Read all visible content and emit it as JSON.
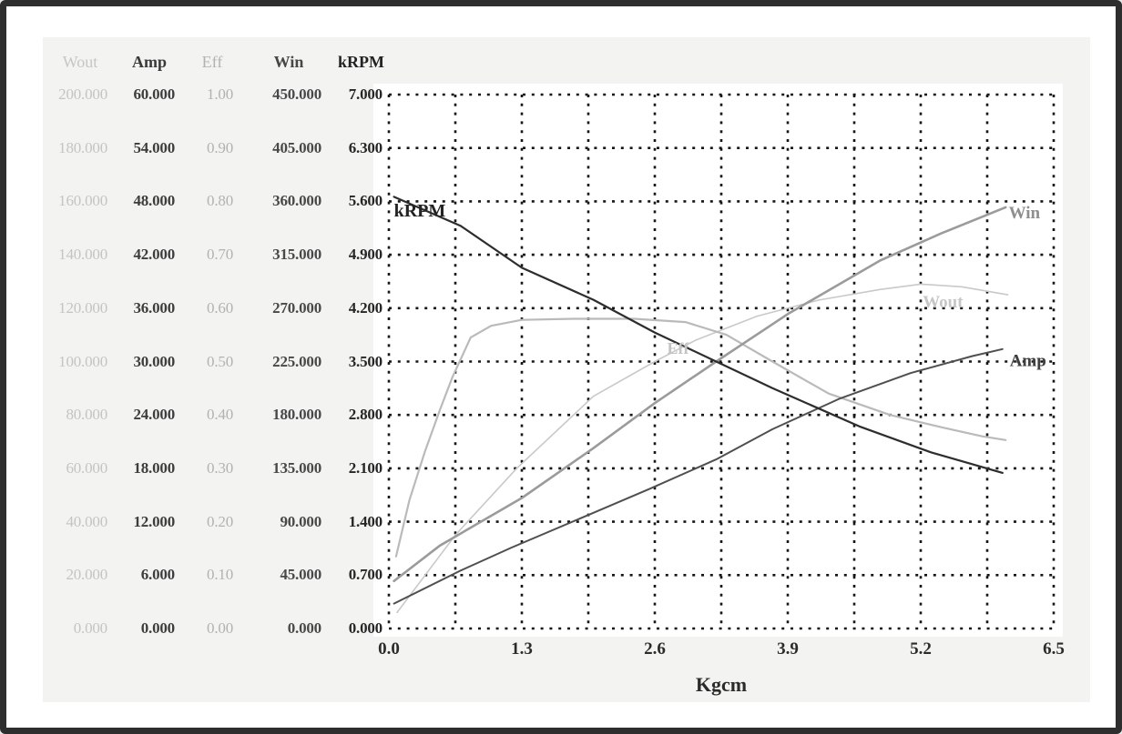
{
  "frame": {
    "border_color": "#2e2e2e",
    "panel_color": "#f3f3f1",
    "plot_background": "#ffffff",
    "grid_color": "#161616"
  },
  "axis_table": {
    "headers": [
      {
        "label": "Wout",
        "color": "#c6c6c6",
        "bold": false
      },
      {
        "label": "Amp",
        "color": "#3a3a3a",
        "bold": true
      },
      {
        "label": "Eff",
        "color": "#b2b2b2",
        "bold": false
      },
      {
        "label": "Win",
        "color": "#474747",
        "bold": true
      },
      {
        "label": "kRPM",
        "color": "#222222",
        "bold": true
      }
    ],
    "column_colors": [
      "#c4c4c4",
      "#3d3d3d",
      "#b2b2b2",
      "#484848",
      "#262626"
    ],
    "column_bold": [
      false,
      true,
      false,
      true,
      true
    ],
    "rows": [
      [
        "200.000",
        "60.000",
        "1.00",
        "450.000",
        "7.000"
      ],
      [
        "180.000",
        "54.000",
        "0.90",
        "405.000",
        "6.300"
      ],
      [
        "160.000",
        "48.000",
        "0.80",
        "360.000",
        "5.600"
      ],
      [
        "140.000",
        "42.000",
        "0.70",
        "315.000",
        "4.900"
      ],
      [
        "120.000",
        "36.000",
        "0.60",
        "270.000",
        "4.200"
      ],
      [
        "100.000",
        "30.000",
        "0.50",
        "225.000",
        "3.500"
      ],
      [
        "80.000",
        "24.000",
        "0.40",
        "180.000",
        "2.800"
      ],
      [
        "60.000",
        "18.000",
        "0.30",
        "135.000",
        "2.100"
      ],
      [
        "40.000",
        "12.000",
        "0.20",
        "90.000",
        "1.400"
      ],
      [
        "20.000",
        "6.000",
        "0.10",
        "45.000",
        "0.700"
      ],
      [
        "0.000",
        "0.000",
        "0.00",
        "0.000",
        "0.000"
      ]
    ]
  },
  "chart_data": {
    "type": "line",
    "title": "",
    "xlabel": "Kgcm",
    "x_range": [
      0,
      6.5
    ],
    "x_ticks": [
      "0.0",
      "1.3",
      "2.6",
      "3.9",
      "5.2",
      "6.5"
    ],
    "grid": "dotted 10x10 divisions",
    "legend_position": "inline-curve-labels",
    "series": [
      {
        "name": "Wout",
        "axis_max": 200,
        "color": "#c9c9c9",
        "width": 1.6,
        "points": [
          [
            0.08,
            6
          ],
          [
            0.65,
            35
          ],
          [
            1.25,
            60
          ],
          [
            2.0,
            87
          ],
          [
            2.6,
            100
          ],
          [
            3.0,
            108
          ],
          [
            3.6,
            117
          ],
          [
            4.2,
            123
          ],
          [
            4.8,
            127
          ],
          [
            5.2,
            129
          ],
          [
            5.6,
            128
          ],
          [
            6.05,
            125
          ]
        ]
      },
      {
        "name": "Eff",
        "axis_max": 1,
        "color": "#bababa",
        "width": 2.2,
        "points": [
          [
            0.07,
            0.135
          ],
          [
            0.2,
            0.24
          ],
          [
            0.35,
            0.33
          ],
          [
            0.5,
            0.41
          ],
          [
            0.62,
            0.47
          ],
          [
            0.8,
            0.545
          ],
          [
            1.0,
            0.567
          ],
          [
            1.3,
            0.578
          ],
          [
            1.8,
            0.58
          ],
          [
            2.4,
            0.58
          ],
          [
            2.9,
            0.574
          ],
          [
            3.3,
            0.55
          ],
          [
            3.75,
            0.5
          ],
          [
            4.3,
            0.44
          ],
          [
            4.9,
            0.4
          ],
          [
            5.4,
            0.377
          ],
          [
            5.8,
            0.36
          ],
          [
            6.03,
            0.353
          ]
        ]
      },
      {
        "name": "Win",
        "axis_max": 450,
        "color": "#9b9b9b",
        "width": 2.6,
        "points": [
          [
            0.05,
            40
          ],
          [
            0.5,
            70
          ],
          [
            1.3,
            110
          ],
          [
            2.0,
            152
          ],
          [
            2.6,
            190
          ],
          [
            3.2,
            225
          ],
          [
            3.9,
            265
          ],
          [
            4.8,
            310
          ],
          [
            5.4,
            333
          ],
          [
            6.03,
            355
          ]
        ]
      },
      {
        "name": "Amp",
        "axis_max": 60,
        "color": "#4f4f4f",
        "width": 2.0,
        "points": [
          [
            0.05,
            2.8
          ],
          [
            0.7,
            6.5
          ],
          [
            1.2,
            9.1
          ],
          [
            2.0,
            13.0
          ],
          [
            2.55,
            15.7
          ],
          [
            3.2,
            19.0
          ],
          [
            3.75,
            22.4
          ],
          [
            4.4,
            25.8
          ],
          [
            5.1,
            28.7
          ],
          [
            5.7,
            30.6
          ],
          [
            6.0,
            31.4
          ]
        ]
      },
      {
        "name": "kRPM",
        "axis_max": 7,
        "color": "#2d2d2d",
        "width": 2.2,
        "points": [
          [
            0.05,
            5.66
          ],
          [
            0.7,
            5.28
          ],
          [
            1.3,
            4.73
          ],
          [
            2.0,
            4.31
          ],
          [
            2.6,
            3.88
          ],
          [
            3.2,
            3.5
          ],
          [
            3.75,
            3.15
          ],
          [
            4.6,
            2.65
          ],
          [
            5.3,
            2.31
          ],
          [
            6.0,
            2.04
          ]
        ]
      }
    ],
    "curve_labels": [
      {
        "text": "kRPM",
        "series": "kRPM",
        "x": 0.05,
        "value": 5.5,
        "color": "#232323",
        "size": 20
      },
      {
        "text": "Win",
        "series": "Win",
        "x": 6.06,
        "value": 352,
        "color": "#8e8e8e",
        "size": 19
      },
      {
        "text": "Wout",
        "series": "Wout",
        "x": 5.22,
        "value": 123,
        "color": "#c6c6c6",
        "size": 19
      },
      {
        "text": "Eff",
        "series": "Eff",
        "x": 2.72,
        "value": 0.528,
        "color": "#c3c3c3",
        "size": 18
      },
      {
        "text": "Amp",
        "series": "Amp",
        "x": 6.07,
        "value": 30.3,
        "color": "#3f3f3f",
        "size": 19
      }
    ]
  }
}
